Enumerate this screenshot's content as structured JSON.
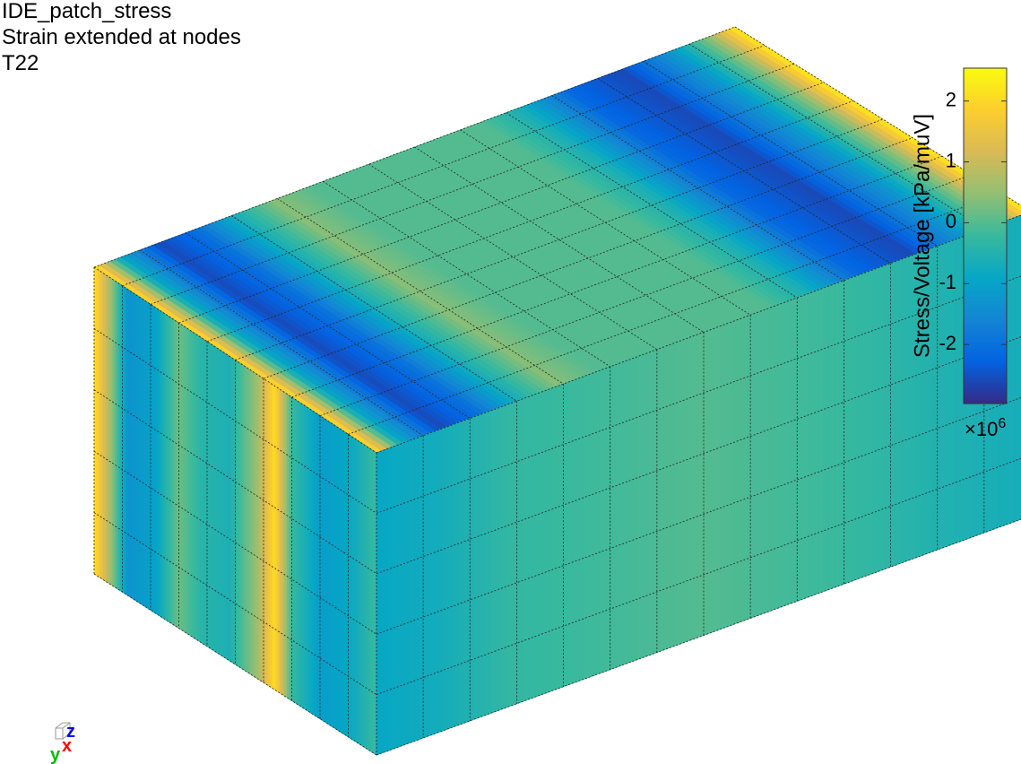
{
  "chart_data": {
    "type": "surface",
    "title": [
      "IDE_patch_stress",
      "Strain extended at nodes",
      "T22"
    ],
    "colormap": "parula",
    "colorbar": {
      "label": "Stress/Voltage [kPa/muV]",
      "clim": [
        -2.97,
        2.54
      ],
      "ticks": [
        -2,
        -1,
        0,
        1,
        2
      ],
      "multiplier": "×10",
      "exponent": "6"
    },
    "axes_triad": {
      "x": "x",
      "y": "y",
      "z": "z"
    }
  }
}
